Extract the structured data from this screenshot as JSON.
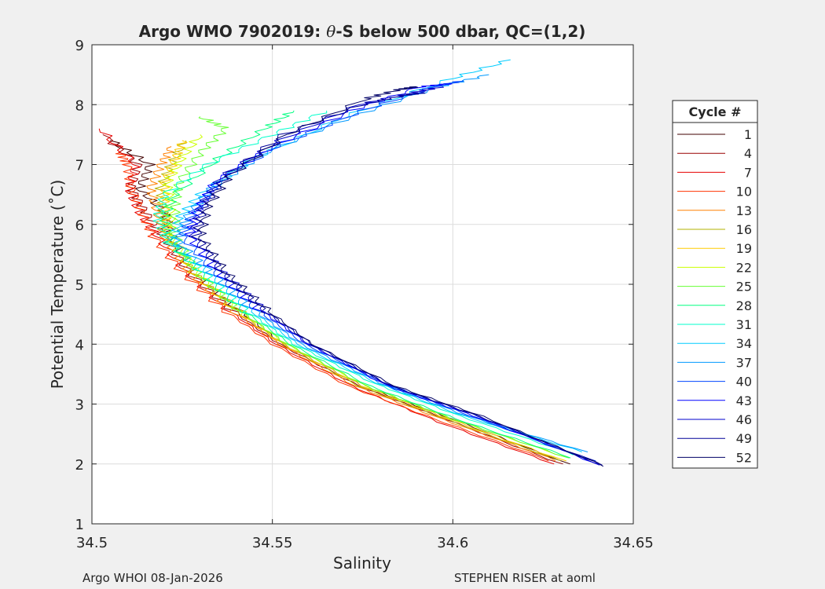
{
  "chart_data": {
    "type": "line",
    "title_prefix": "Argo WMO 7902019: ",
    "title_theta": "θ",
    "title_suffix": "-S below 500 dbar,  QC=(1,2)",
    "xlabel": "Salinity",
    "ylabel": "Potential Temperature (˚C)",
    "xlim": [
      34.5,
      34.65
    ],
    "ylim": [
      1,
      9
    ],
    "xticks": [
      34.5,
      34.55,
      34.6,
      34.65
    ],
    "xtick_labels": [
      "34.5",
      "34.55",
      "34.6",
      "34.65"
    ],
    "yticks": [
      1,
      2,
      3,
      4,
      5,
      6,
      7,
      8,
      9
    ],
    "ytick_labels": [
      "1",
      "2",
      "3",
      "4",
      "5",
      "6",
      "7",
      "8",
      "9"
    ],
    "grid": true,
    "legend_title": "Cycle #",
    "legend_position": "right",
    "series": [
      {
        "name": "1",
        "color": "#400000",
        "points": [
          [
            34.632,
            2.0
          ],
          [
            34.6,
            2.75
          ],
          [
            34.575,
            3.3
          ],
          [
            34.553,
            4.0
          ],
          [
            34.54,
            4.6
          ],
          [
            34.528,
            5.2
          ],
          [
            34.522,
            5.8
          ],
          [
            34.52,
            6.2
          ],
          [
            34.513,
            6.6
          ],
          [
            34.516,
            7.0
          ],
          [
            34.505,
            7.4
          ]
        ]
      },
      {
        "name": "4",
        "color": "#990000",
        "points": [
          [
            34.63,
            2.0
          ],
          [
            34.598,
            2.75
          ],
          [
            34.574,
            3.3
          ],
          [
            34.552,
            4.0
          ],
          [
            34.538,
            4.6
          ],
          [
            34.527,
            5.2
          ],
          [
            34.52,
            5.8
          ],
          [
            34.515,
            6.2
          ],
          [
            34.511,
            6.6
          ],
          [
            34.513,
            7.0
          ],
          [
            34.503,
            7.5
          ]
        ]
      },
      {
        "name": "7",
        "color": "#e60000",
        "points": [
          [
            34.628,
            2.0
          ],
          [
            34.596,
            2.7
          ],
          [
            34.572,
            3.3
          ],
          [
            34.551,
            4.0
          ],
          [
            34.537,
            4.6
          ],
          [
            34.526,
            5.2
          ],
          [
            34.518,
            5.8
          ],
          [
            34.513,
            6.2
          ],
          [
            34.51,
            6.6
          ],
          [
            34.512,
            7.0
          ],
          [
            34.502,
            7.6
          ]
        ]
      },
      {
        "name": "10",
        "color": "#ff3300",
        "points": [
          [
            34.627,
            2.05
          ],
          [
            34.595,
            2.75
          ],
          [
            34.571,
            3.3
          ],
          [
            34.55,
            4.0
          ],
          [
            34.536,
            4.6
          ],
          [
            34.525,
            5.2
          ],
          [
            34.517,
            5.8
          ],
          [
            34.514,
            6.2
          ],
          [
            34.511,
            6.6
          ],
          [
            34.51,
            7.0
          ],
          [
            34.508,
            7.2
          ]
        ]
      },
      {
        "name": "13",
        "color": "#ff8000",
        "points": [
          [
            34.629,
            2.05
          ],
          [
            34.597,
            2.75
          ],
          [
            34.573,
            3.3
          ],
          [
            34.552,
            4.0
          ],
          [
            34.538,
            4.6
          ],
          [
            34.527,
            5.2
          ],
          [
            34.52,
            5.8
          ],
          [
            34.518,
            6.2
          ],
          [
            34.516,
            6.6
          ],
          [
            34.519,
            7.0
          ],
          [
            34.522,
            7.3
          ]
        ]
      },
      {
        "name": "16",
        "color": "#b3b300",
        "points": [
          [
            34.63,
            2.05
          ],
          [
            34.598,
            2.75
          ],
          [
            34.574,
            3.3
          ],
          [
            34.553,
            4.0
          ],
          [
            34.539,
            4.6
          ],
          [
            34.528,
            5.2
          ],
          [
            34.521,
            5.8
          ],
          [
            34.52,
            6.2
          ],
          [
            34.519,
            6.6
          ],
          [
            34.522,
            7.0
          ],
          [
            34.526,
            7.4
          ]
        ]
      },
      {
        "name": "19",
        "color": "#ffcc00",
        "points": [
          [
            34.631,
            2.05
          ],
          [
            34.599,
            2.75
          ],
          [
            34.575,
            3.3
          ],
          [
            34.553,
            4.0
          ],
          [
            34.539,
            4.6
          ],
          [
            34.528,
            5.2
          ],
          [
            34.521,
            5.8
          ],
          [
            34.52,
            6.3
          ],
          [
            34.52,
            6.7
          ],
          [
            34.523,
            7.1
          ],
          [
            34.525,
            7.4
          ]
        ]
      },
      {
        "name": "22",
        "color": "#ccff00",
        "points": [
          [
            34.632,
            2.1
          ],
          [
            34.6,
            2.75
          ],
          [
            34.576,
            3.3
          ],
          [
            34.554,
            4.0
          ],
          [
            34.54,
            4.6
          ],
          [
            34.529,
            5.2
          ],
          [
            34.522,
            5.8
          ],
          [
            34.522,
            6.3
          ],
          [
            34.521,
            6.7
          ],
          [
            34.525,
            7.1
          ],
          [
            34.53,
            7.5
          ]
        ]
      },
      {
        "name": "25",
        "color": "#66ff33",
        "points": [
          [
            34.632,
            2.1
          ],
          [
            34.6,
            2.75
          ],
          [
            34.576,
            3.3
          ],
          [
            34.554,
            4.0
          ],
          [
            34.54,
            4.6
          ],
          [
            34.529,
            5.2
          ],
          [
            34.523,
            5.8
          ],
          [
            34.523,
            6.3
          ],
          [
            34.524,
            6.7
          ],
          [
            34.53,
            7.2
          ],
          [
            34.537,
            7.6
          ],
          [
            34.53,
            7.8
          ]
        ]
      },
      {
        "name": "28",
        "color": "#00ff80",
        "points": [
          [
            34.633,
            2.1
          ],
          [
            34.601,
            2.75
          ],
          [
            34.577,
            3.3
          ],
          [
            34.555,
            4.0
          ],
          [
            34.541,
            4.6
          ],
          [
            34.53,
            5.2
          ],
          [
            34.522,
            5.7
          ],
          [
            34.52,
            6.1
          ],
          [
            34.523,
            6.5
          ],
          [
            34.535,
            7.1
          ],
          [
            34.548,
            7.6
          ],
          [
            34.556,
            7.9
          ]
        ]
      },
      {
        "name": "31",
        "color": "#00ffcc",
        "points": [
          [
            34.634,
            2.15
          ],
          [
            34.602,
            2.8
          ],
          [
            34.578,
            3.35
          ],
          [
            34.556,
            4.0
          ],
          [
            34.542,
            4.6
          ],
          [
            34.531,
            5.2
          ],
          [
            34.521,
            5.7
          ],
          [
            34.518,
            6.1
          ],
          [
            34.52,
            6.5
          ],
          [
            34.532,
            7.0
          ],
          [
            34.55,
            7.5
          ],
          [
            34.565,
            7.9
          ]
        ]
      },
      {
        "name": "34",
        "color": "#00ccff",
        "points": [
          [
            34.636,
            2.2
          ],
          [
            34.603,
            2.8
          ],
          [
            34.579,
            3.35
          ],
          [
            34.557,
            4.0
          ],
          [
            34.543,
            4.6
          ],
          [
            34.532,
            5.2
          ],
          [
            34.523,
            5.7
          ],
          [
            34.524,
            6.1
          ],
          [
            34.53,
            6.5
          ],
          [
            34.545,
            7.1
          ],
          [
            34.57,
            7.8
          ],
          [
            34.598,
            8.4
          ],
          [
            34.616,
            8.75
          ]
        ]
      },
      {
        "name": "37",
        "color": "#0099ff",
        "points": [
          [
            34.637,
            2.2
          ],
          [
            34.604,
            2.8
          ],
          [
            34.58,
            3.35
          ],
          [
            34.558,
            4.0
          ],
          [
            34.544,
            4.6
          ],
          [
            34.533,
            5.2
          ],
          [
            34.524,
            5.7
          ],
          [
            34.526,
            6.1
          ],
          [
            34.533,
            6.6
          ],
          [
            34.548,
            7.2
          ],
          [
            34.572,
            7.8
          ],
          [
            34.596,
            8.3
          ],
          [
            34.61,
            8.5
          ]
        ]
      },
      {
        "name": "40",
        "color": "#0044ff",
        "points": [
          [
            34.639,
            2.05
          ],
          [
            34.605,
            2.8
          ],
          [
            34.581,
            3.35
          ],
          [
            34.559,
            4.0
          ],
          [
            34.545,
            4.6
          ],
          [
            34.534,
            5.2
          ],
          [
            34.525,
            5.8
          ],
          [
            34.528,
            6.2
          ],
          [
            34.535,
            6.7
          ],
          [
            34.551,
            7.3
          ],
          [
            34.575,
            7.9
          ],
          [
            34.595,
            8.3
          ],
          [
            34.603,
            8.4
          ]
        ]
      },
      {
        "name": "43",
        "color": "#0000ff",
        "points": [
          [
            34.64,
            2.0
          ],
          [
            34.606,
            2.8
          ],
          [
            34.582,
            3.3
          ],
          [
            34.56,
            4.0
          ],
          [
            34.546,
            4.6
          ],
          [
            34.535,
            5.2
          ],
          [
            34.527,
            5.8
          ],
          [
            34.529,
            6.2
          ],
          [
            34.534,
            6.7
          ],
          [
            34.55,
            7.3
          ],
          [
            34.572,
            7.9
          ],
          [
            34.591,
            8.3
          ],
          [
            34.599,
            8.35
          ]
        ]
      },
      {
        "name": "46",
        "color": "#0000cc",
        "points": [
          [
            34.641,
            1.98
          ],
          [
            34.607,
            2.8
          ],
          [
            34.583,
            3.3
          ],
          [
            34.56,
            4.0
          ],
          [
            34.547,
            4.6
          ],
          [
            34.536,
            5.2
          ],
          [
            34.528,
            5.8
          ],
          [
            34.53,
            6.3
          ],
          [
            34.536,
            6.8
          ],
          [
            34.552,
            7.4
          ],
          [
            34.574,
            8.0
          ],
          [
            34.589,
            8.2
          ],
          [
            34.597,
            8.3
          ]
        ]
      },
      {
        "name": "49",
        "color": "#000099",
        "points": [
          [
            34.642,
            1.98
          ],
          [
            34.607,
            2.8
          ],
          [
            34.583,
            3.3
          ],
          [
            34.561,
            4.0
          ],
          [
            34.547,
            4.6
          ],
          [
            34.536,
            5.2
          ],
          [
            34.529,
            5.8
          ],
          [
            34.531,
            6.3
          ],
          [
            34.537,
            6.8
          ],
          [
            34.553,
            7.5
          ],
          [
            34.575,
            8.0
          ],
          [
            34.586,
            8.15
          ],
          [
            34.592,
            8.2
          ]
        ]
      },
      {
        "name": "52",
        "color": "#000066",
        "points": [
          [
            34.642,
            1.96
          ],
          [
            34.608,
            2.8
          ],
          [
            34.584,
            3.3
          ],
          [
            34.561,
            4.0
          ],
          [
            34.548,
            4.6
          ],
          [
            34.537,
            5.2
          ],
          [
            34.53,
            5.8
          ],
          [
            34.532,
            6.3
          ],
          [
            34.538,
            6.8
          ],
          [
            34.554,
            7.5
          ],
          [
            34.576,
            8.1
          ],
          [
            34.585,
            8.25
          ],
          [
            34.59,
            8.3
          ]
        ]
      }
    ]
  },
  "footer": {
    "left": "Argo WHOI 08-Jan-2026",
    "right": "STEPHEN RISER at aoml"
  }
}
